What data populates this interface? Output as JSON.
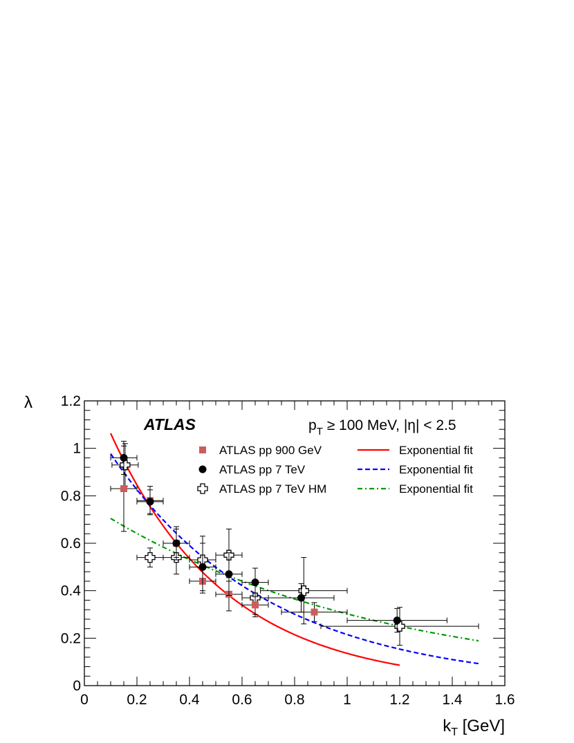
{
  "chart_data": {
    "type": "scatter",
    "experiment_label": "ATLAS",
    "cuts_label": {
      "p": "p",
      "sub": "T",
      "rest": " ≥ 100 MeV, |η| < 2.5"
    },
    "ylabel": "λ",
    "xlabel": {
      "main": "k",
      "sub": "T",
      "unit": " [GeV]"
    },
    "xlim": [
      0,
      1.6
    ],
    "ylim": [
      0,
      1.2
    ],
    "xticks": [
      "0",
      "0.2",
      "0.4",
      "0.6",
      "0.8",
      "1",
      "1.2",
      "1.4",
      "1.6"
    ],
    "yticks": [
      "0",
      "0.2",
      "0.4",
      "0.6",
      "0.8",
      "1",
      "1.2"
    ],
    "grid": false,
    "legend_position": "top-right",
    "series": [
      {
        "name": "ATLAS pp 900 GeV",
        "marker": "filled-square",
        "color": "#cd5c5c",
        "points": [
          {
            "x": 0.15,
            "y": 0.83,
            "xerr": 0.05,
            "yerr": 0.18
          },
          {
            "x": 0.25,
            "y": 0.78,
            "xerr": 0.05,
            "yerr": 0.06
          },
          {
            "x": 0.35,
            "y": 0.6,
            "xerr": 0.05,
            "yerr": 0.06
          },
          {
            "x": 0.45,
            "y": 0.44,
            "xerr": 0.05,
            "yerr": 0.05
          },
          {
            "x": 0.55,
            "y": 0.385,
            "xerr": 0.05,
            "yerr": 0.07
          },
          {
            "x": 0.65,
            "y": 0.34,
            "xerr": 0.05,
            "yerr": 0.05
          },
          {
            "x": 0.875,
            "y": 0.31,
            "xerr": 0.125,
            "yerr": 0.04
          }
        ]
      },
      {
        "name": "ATLAS pp 7 TeV",
        "marker": "filled-circle",
        "color": "#000000",
        "points": [
          {
            "x": 0.15,
            "y": 0.96,
            "xerr": 0.05,
            "yerr": 0.07
          },
          {
            "x": 0.25,
            "y": 0.775,
            "xerr": 0.05,
            "yerr": 0.05
          },
          {
            "x": 0.35,
            "y": 0.6,
            "xerr": 0.05,
            "yerr": 0.07
          },
          {
            "x": 0.45,
            "y": 0.5,
            "xerr": 0.05,
            "yerr": 0.1
          },
          {
            "x": 0.55,
            "y": 0.47,
            "xerr": 0.05,
            "yerr": 0.09
          },
          {
            "x": 0.65,
            "y": 0.435,
            "xerr": 0.05,
            "yerr": 0.06
          },
          {
            "x": 0.825,
            "y": 0.37,
            "xerr": 0.125,
            "yerr": 0.06
          },
          {
            "x": 1.19,
            "y": 0.275,
            "xerr": 0.19,
            "yerr": 0.05
          }
        ]
      },
      {
        "name": "ATLAS pp 7 TeV HM",
        "marker": "open-cross",
        "color": "#000000",
        "points": [
          {
            "x": 0.155,
            "y": 0.93,
            "xerr": 0.05,
            "yerr": 0.09
          },
          {
            "x": 0.25,
            "y": 0.54,
            "xerr": 0.05,
            "yerr": 0.04
          },
          {
            "x": 0.35,
            "y": 0.54,
            "xerr": 0.05,
            "yerr": 0.07
          },
          {
            "x": 0.45,
            "y": 0.53,
            "xerr": 0.05,
            "yerr": 0.1
          },
          {
            "x": 0.55,
            "y": 0.55,
            "xerr": 0.05,
            "yerr": 0.11
          },
          {
            "x": 0.65,
            "y": 0.37,
            "xerr": 0.05,
            "yerr": 0.07
          },
          {
            "x": 0.835,
            "y": 0.4,
            "xerr": 0.165,
            "yerr": 0.14
          },
          {
            "x": 1.2,
            "y": 0.25,
            "xerr": 0.3,
            "yerr": 0.08
          }
        ]
      }
    ],
    "fits": [
      {
        "name": "Exponential fit",
        "style": "solid",
        "color": "#ff0000",
        "x_range": [
          0.1,
          1.2
        ],
        "amplitude": 1.336,
        "decay": 2.285
      },
      {
        "name": "Exponential fit",
        "style": "dashed",
        "color": "#0000ff",
        "x_range": [
          0.1,
          1.5
        ],
        "amplitude": 1.156,
        "decay": 1.681
      },
      {
        "name": "Exponential fit",
        "style": "dash-dot",
        "color": "#009900",
        "x_range": [
          0.1,
          1.5
        ],
        "amplitude": 0.774,
        "decay": 0.94
      }
    ]
  }
}
